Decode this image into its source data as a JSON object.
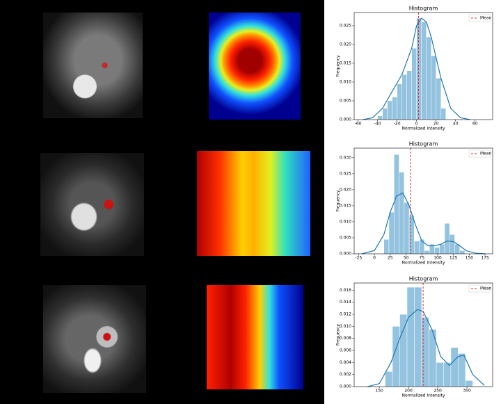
{
  "chart_data": [
    {
      "type": "histogram",
      "title": "Histogram",
      "xlabel": "Normalized Intensity",
      "ylabel": "Frequency",
      "color": "#93c3df",
      "bins": [
        -40,
        -35,
        -30,
        -25,
        -20,
        -15,
        -10,
        -5,
        0,
        5,
        10,
        15,
        20,
        25,
        30
      ],
      "values": [
        0.001,
        0.003,
        0.005,
        0.006,
        0.0095,
        0.012,
        0.013,
        0.019,
        0.027,
        0.026,
        0.022,
        0.017,
        0.011,
        0.003
      ],
      "kde": {
        "color": "#1f77b4",
        "x": [
          -55,
          -45,
          -35,
          -25,
          -15,
          -5,
          0,
          5,
          10,
          15,
          25,
          35,
          45,
          55
        ],
        "y": [
          0,
          0.0005,
          0.003,
          0.0075,
          0.012,
          0.019,
          0.025,
          0.027,
          0.026,
          0.022,
          0.011,
          0.003,
          0.0005,
          0
        ]
      },
      "mean_line": {
        "name": "Mean",
        "value": 2,
        "color": "#e8282b"
      },
      "xlim": [
        -64,
        78
      ],
      "xticks": [
        -60,
        -40,
        -20,
        0,
        20,
        40,
        60
      ],
      "ylim": [
        0,
        0.0285
      ],
      "yticks": [
        {
          "value": 0,
          "label": "0.000"
        },
        {
          "value": 0.005,
          "label": "0.005"
        },
        {
          "value": 0.01,
          "label": "0.010"
        },
        {
          "value": 0.015,
          "label": "0.015"
        },
        {
          "value": 0.02,
          "label": "0.020"
        },
        {
          "value": 0.025,
          "label": "0.025"
        }
      ]
    },
    {
      "type": "histogram",
      "title": "Histogram",
      "xlabel": "Normalized Intensity",
      "ylabel": "Frequency",
      "color": "#93c3df",
      "bins": [
        15,
        23,
        31,
        39,
        47,
        55,
        63,
        71,
        79,
        87,
        95,
        103,
        111,
        119,
        127,
        135,
        143
      ],
      "values": [
        0.0045,
        0.013,
        0.031,
        0.0255,
        0.016,
        0.012,
        0.004,
        0.0045,
        0.001,
        0.003,
        0.002,
        0.003,
        0.0095,
        0.006,
        0.003,
        0.001
      ],
      "kde": {
        "color": "#1f77b4",
        "x": [
          -20,
          0,
          15,
          25,
          35,
          45,
          55,
          65,
          75,
          85,
          95,
          105,
          115,
          125,
          135,
          145,
          160,
          175
        ],
        "y": [
          0,
          0.001,
          0.006,
          0.013,
          0.018,
          0.019,
          0.015,
          0.009,
          0.004,
          0.0025,
          0.0025,
          0.003,
          0.004,
          0.0038,
          0.0025,
          0.001,
          0.0002,
          0
        ]
      },
      "mean_line": {
        "name": "Mean",
        "value": 57,
        "color": "#e8282b"
      },
      "xlim": [
        -32,
        187
      ],
      "xticks": [
        -25,
        0,
        25,
        50,
        75,
        100,
        125,
        150,
        175
      ],
      "ylim": [
        0,
        0.033
      ],
      "yticks": [
        {
          "value": 0,
          "label": "0.000"
        },
        {
          "value": 0.005,
          "label": "0.005"
        },
        {
          "value": 0.01,
          "label": "0.010"
        },
        {
          "value": 0.015,
          "label": "0.015"
        },
        {
          "value": 0.02,
          "label": "0.020"
        },
        {
          "value": 0.025,
          "label": "0.025"
        },
        {
          "value": 0.03,
          "label": "0.030"
        }
      ]
    },
    {
      "type": "histogram",
      "title": "Histogram",
      "xlabel": "Normalized Intensity",
      "ylabel": "Frequency",
      "color": "#93c3df",
      "bins": [
        160,
        172.5,
        185,
        197.5,
        210,
        222.5,
        235,
        247.5,
        260,
        272.5,
        285,
        297.5,
        310
      ],
      "values": [
        0.0025,
        0.01,
        0.012,
        0.0165,
        0.0165,
        0.0115,
        0.0095,
        0.004,
        0.004,
        0.0065,
        0.0055,
        0.001
      ],
      "kde": {
        "color": "#1f77b4",
        "x": [
          130,
          150,
          170,
          185,
          200,
          215,
          225,
          240,
          255,
          270,
          285,
          295,
          310,
          330
        ],
        "y": [
          0,
          0.0005,
          0.004,
          0.008,
          0.0115,
          0.0128,
          0.0125,
          0.0095,
          0.005,
          0.0035,
          0.005,
          0.0052,
          0.002,
          0.0002
        ]
      },
      "mean_line": {
        "name": "Mean",
        "value": 225,
        "color": "#e8282b"
      },
      "xlim": [
        107,
        344
      ],
      "xticks": [
        150,
        200,
        250,
        300
      ],
      "ylim": [
        0,
        0.0172
      ],
      "yticks": [
        {
          "value": 0,
          "label": "0.000"
        },
        {
          "value": 0.002,
          "label": "0.002"
        },
        {
          "value": 0.004,
          "label": "0.004"
        },
        {
          "value": 0.006,
          "label": "0.006"
        },
        {
          "value": 0.008,
          "label": "0.008"
        },
        {
          "value": 0.01,
          "label": "0.010"
        },
        {
          "value": 0.012,
          "label": "0.012"
        },
        {
          "value": 0.014,
          "label": "0.014"
        },
        {
          "value": 0.016,
          "label": "0.016"
        }
      ]
    }
  ]
}
